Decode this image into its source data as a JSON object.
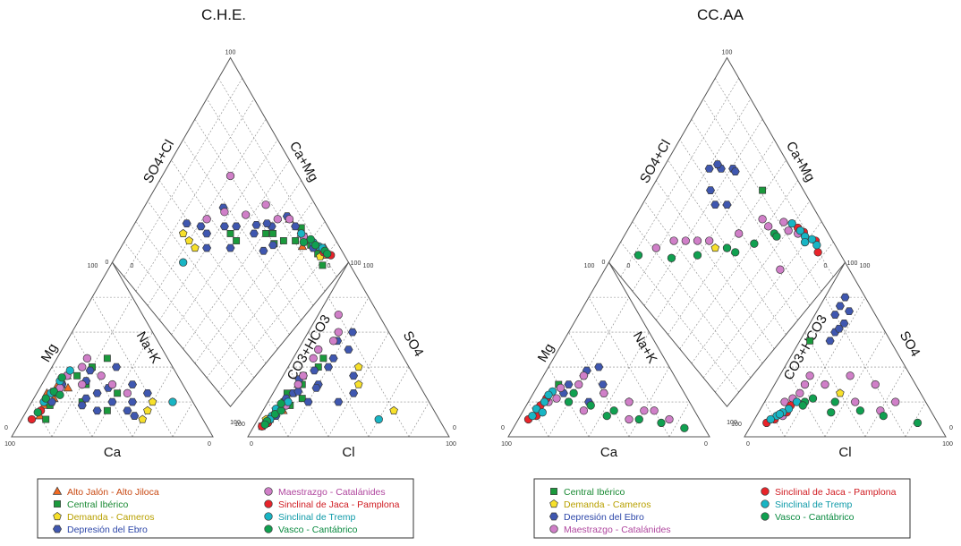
{
  "series_styles": [
    {
      "key": "alto_jalon",
      "name": "Alto Jalón - Alto Jiloca",
      "shape": "triangle",
      "color": "#f26a22",
      "text_color": "#c94a14"
    },
    {
      "key": "central_iberico",
      "name": "Central Ibérico",
      "shape": "square",
      "color": "#1a9a3c",
      "text_color": "#1a8a34"
    },
    {
      "key": "demanda",
      "name": "Demanda - Cameros",
      "shape": "pentagon",
      "color": "#f7e02a",
      "text_color": "#b8a000"
    },
    {
      "key": "depresion",
      "name": "Depresión del Ebro",
      "shape": "hexagon",
      "color": "#3f57b0",
      "text_color": "#2c46a8"
    },
    {
      "key": "maestrazgo",
      "name": "Maestrazgo - Catalánides",
      "shape": "circle",
      "color": "#d07fc8",
      "text_color": "#b0479f"
    },
    {
      "key": "jaca",
      "name": "Sinclinal de Jaca - Pamplona",
      "shape": "circle",
      "color": "#e8242a",
      "text_color": "#d01c22"
    },
    {
      "key": "tremp",
      "name": "Sinclinal de Tremp",
      "shape": "circle",
      "color": "#18b5c4",
      "text_color": "#0e9aa8"
    },
    {
      "key": "vasco",
      "name": "Vasco - Cantábrico",
      "shape": "circle",
      "color": "#10a050",
      "text_color": "#0a8a40"
    }
  ],
  "tick_labels": {
    "zero": "0",
    "hundred": "100"
  },
  "chart_data": [
    {
      "type": "scatter",
      "subtype": "piper-diagram",
      "title": "C.H.E.",
      "axis_labels": {
        "cation_left": "Mg",
        "cation_right": "Na+K",
        "cation_bottom": "Ca",
        "anion_left": "CO3+HCO3",
        "anion_right": "SO4",
        "anion_bottom": "Cl",
        "diamond_left": "SO4+Cl",
        "diamond_right": "Ca+Mg"
      },
      "legend": [
        "Alto Jalón - Alto Jiloca",
        "Central Ibérico",
        "Demanda - Cameros",
        "Depresión del Ebro",
        "Maestrazgo - Catalánides",
        "Sinclinal de Jaca - Pamplona",
        "Sinclinal de Tremp",
        "Vasco - Cantábrico"
      ],
      "series": [
        {
          "name": "Alto Jalón - Alto Jiloca",
          "points": [
            {
              "ca": 70,
              "mg": 25,
              "hco3": 85,
              "so4": 10
            },
            {
              "ca": 62,
              "mg": 30,
              "hco3": 80,
              "so4": 14
            },
            {
              "ca": 75,
              "mg": 18,
              "hco3": 88,
              "so4": 8
            },
            {
              "ca": 55,
              "mg": 35,
              "hco3": 70,
              "so4": 20
            },
            {
              "ca": 68,
              "mg": 22,
              "hco3": 60,
              "so4": 30
            },
            {
              "ca": 58,
              "mg": 28,
              "hco3": 75,
              "so4": 15
            },
            {
              "ca": 80,
              "mg": 12,
              "hco3": 82,
              "so4": 12
            }
          ]
        },
        {
          "name": "Central Ibérico",
          "points": [
            {
              "ca": 65,
              "mg": 25,
              "hco3": 78,
              "so4": 15
            },
            {
              "ca": 50,
              "mg": 35,
              "hco3": 70,
              "so4": 18
            },
            {
              "ca": 72,
              "mg": 18,
              "hco3": 84,
              "so4": 10
            },
            {
              "ca": 40,
              "mg": 40,
              "hco3": 65,
              "so4": 25
            },
            {
              "ca": 55,
              "mg": 20,
              "hco3": 55,
              "so4": 35
            },
            {
              "ca": 35,
              "mg": 25,
              "hco3": 45,
              "so4": 40
            },
            {
              "ca": 30,
              "mg": 45,
              "hco3": 62,
              "so4": 22
            },
            {
              "ca": 78,
              "mg": 10,
              "hco3": 90,
              "so4": 6
            },
            {
              "ca": 60,
              "mg": 30,
              "hco3": 72,
              "so4": 20
            },
            {
              "ca": 45,
              "mg": 15,
              "hco3": 40,
              "so4": 45
            },
            {
              "ca": 48,
              "mg": 30,
              "hco3": 58,
              "so4": 30
            },
            {
              "ca": 66,
              "mg": 26,
              "hco3": 68,
              "so4": 25
            }
          ]
        },
        {
          "name": "Demanda - Cameros",
          "points": [
            {
              "ca": 70,
              "mg": 20,
              "hco3": 86,
              "so4": 10
            },
            {
              "ca": 25,
              "mg": 15,
              "hco3": 30,
              "so4": 30
            },
            {
              "ca": 20,
              "mg": 20,
              "hco3": 25,
              "so4": 40
            },
            {
              "ca": 60,
              "mg": 30,
              "hco3": 74,
              "so4": 18
            },
            {
              "ca": 30,
              "mg": 10,
              "hco3": 20,
              "so4": 15
            }
          ]
        },
        {
          "name": "Depresión del Ebro",
          "points": [
            {
              "ca": 60,
              "mg": 30,
              "hco3": 70,
              "so4": 22
            },
            {
              "ca": 45,
              "mg": 25,
              "hco3": 50,
              "so4": 30
            },
            {
              "ca": 40,
              "mg": 20,
              "hco3": 35,
              "so4": 45
            },
            {
              "ca": 35,
              "mg": 15,
              "hco3": 25,
              "so4": 50
            },
            {
              "ca": 55,
              "mg": 35,
              "hco3": 65,
              "so4": 25
            },
            {
              "ca": 30,
              "mg": 20,
              "hco3": 30,
              "so4": 35
            },
            {
              "ca": 50,
              "mg": 15,
              "hco3": 40,
              "so4": 40
            },
            {
              "ca": 25,
              "mg": 30,
              "hco3": 45,
              "so4": 20
            },
            {
              "ca": 70,
              "mg": 20,
              "hco3": 80,
              "so4": 12
            },
            {
              "ca": 42,
              "mg": 38,
              "hco3": 55,
              "so4": 35
            },
            {
              "ca": 38,
              "mg": 28,
              "hco3": 28,
              "so4": 55
            },
            {
              "ca": 20,
              "mg": 25,
              "hco3": 35,
              "so4": 25
            },
            {
              "ca": 52,
              "mg": 22,
              "hco3": 48,
              "so4": 38
            },
            {
              "ca": 33,
              "mg": 12,
              "hco3": 18,
              "so4": 60
            },
            {
              "ca": 63,
              "mg": 27,
              "hco3": 58,
              "so4": 33
            },
            {
              "ca": 47,
              "mg": 32,
              "hco3": 52,
              "so4": 28
            },
            {
              "ca": 28,
              "mg": 40,
              "hco3": 60,
              "so4": 20
            },
            {
              "ca": 56,
              "mg": 18,
              "hco3": 62,
              "so4": 26
            }
          ]
        },
        {
          "name": "Maestrazgo - Catalánides",
          "points": [
            {
              "ca": 55,
              "mg": 35,
              "hco3": 60,
              "so4": 30
            },
            {
              "ca": 40,
              "mg": 45,
              "hco3": 55,
              "so4": 35
            },
            {
              "ca": 35,
              "mg": 30,
              "hco3": 30,
              "so4": 55
            },
            {
              "ca": 30,
              "mg": 25,
              "hco3": 25,
              "so4": 60
            },
            {
              "ca": 62,
              "mg": 28,
              "hco3": 72,
              "so4": 18
            },
            {
              "ca": 45,
              "mg": 40,
              "hco3": 45,
              "so4": 45
            },
            {
              "ca": 50,
              "mg": 30,
              "hco3": 20,
              "so4": 70
            },
            {
              "ca": 38,
              "mg": 35,
              "hco3": 40,
              "so4": 50
            }
          ]
        },
        {
          "name": "Sinclinal de Jaca - Pamplona",
          "points": [
            {
              "ca": 85,
              "mg": 10,
              "hco3": 90,
              "so4": 6
            },
            {
              "ca": 78,
              "mg": 15,
              "hco3": 86,
              "so4": 8
            }
          ]
        },
        {
          "name": "Sinclinal de Tremp",
          "points": [
            {
              "ca": 68,
              "mg": 25,
              "hco3": 82,
              "so4": 12
            },
            {
              "ca": 60,
              "mg": 32,
              "hco3": 78,
              "so4": 16
            },
            {
              "ca": 52,
              "mg": 38,
              "hco3": 70,
              "so4": 20
            },
            {
              "ca": 74,
              "mg": 20,
              "hco3": 84,
              "so4": 10
            },
            {
              "ca": 10,
              "mg": 20,
              "hco3": 30,
              "so4": 10
            }
          ]
        },
        {
          "name": "Vasco - Cantábrico",
          "points": [
            {
              "ca": 72,
              "mg": 22,
              "hco3": 86,
              "so4": 9
            },
            {
              "ca": 66,
              "mg": 26,
              "hco3": 80,
              "so4": 13
            },
            {
              "ca": 58,
              "mg": 34,
              "hco3": 76,
              "so4": 15
            },
            {
              "ca": 80,
              "mg": 14,
              "hco3": 88,
              "so4": 7
            },
            {
              "ca": 64,
              "mg": 24,
              "hco3": 74,
              "so4": 19
            }
          ]
        }
      ]
    },
    {
      "type": "scatter",
      "subtype": "piper-diagram",
      "title": "CC.AA",
      "axis_labels": {
        "cation_left": "Mg",
        "cation_right": "Na+K",
        "cation_bottom": "Ca",
        "anion_left": "CO3+HCO3",
        "anion_right": "SO4",
        "anion_bottom": "Cl",
        "diamond_left": "SO4+Cl",
        "diamond_right": "Ca+Mg"
      },
      "legend": [
        "Central Ibérico",
        "Demanda - Cameros",
        "Depresión del Ebro",
        "Maestrazgo - Catalánides",
        "Sinclinal de Jaca - Pamplona",
        "Sinclinal de Tremp",
        "Vasco - Cantábrico"
      ],
      "series": [
        {
          "name": "Central Ibérico",
          "points": [
            {
              "ca": 60,
              "mg": 30,
              "hco3": 40,
              "so4": 55
            }
          ]
        },
        {
          "name": "Demanda - Cameros",
          "points": [
            {
              "ca": 30,
              "mg": 20,
              "hco3": 40,
              "so4": 25
            }
          ]
        },
        {
          "name": "Depresión del Ebro",
          "points": [
            {
              "ca": 55,
              "mg": 30,
              "hco3": 20,
              "so4": 70
            },
            {
              "ca": 45,
              "mg": 35,
              "hco3": 15,
              "so4": 75
            },
            {
              "ca": 40,
              "mg": 25,
              "hco3": 25,
              "so4": 60
            },
            {
              "ca": 35,
              "mg": 40,
              "hco3": 10,
              "so4": 80
            },
            {
              "ca": 50,
              "mg": 20,
              "hco3": 30,
              "so4": 55
            },
            {
              "ca": 38,
              "mg": 30,
              "hco3": 18,
              "so4": 65
            },
            {
              "ca": 60,
              "mg": 25,
              "hco3": 22,
              "so4": 62
            },
            {
              "ca": 42,
              "mg": 38,
              "hco3": 12,
              "so4": 72
            }
          ]
        },
        {
          "name": "Maestrazgo - Catalánides",
          "points": [
            {
              "ca": 70,
              "mg": 20,
              "hco3": 70,
              "so4": 20
            },
            {
              "ca": 60,
              "mg": 28,
              "hco3": 60,
              "so4": 25
            },
            {
              "ca": 50,
              "mg": 30,
              "hco3": 55,
              "so4": 30
            },
            {
              "ca": 40,
              "mg": 25,
              "hco3": 45,
              "so4": 30
            },
            {
              "ca": 30,
              "mg": 20,
              "hco3": 35,
              "so4": 20
            },
            {
              "ca": 25,
              "mg": 15,
              "hco3": 25,
              "so4": 15
            },
            {
              "ca": 65,
              "mg": 22,
              "hco3": 65,
              "so4": 22
            },
            {
              "ca": 45,
              "mg": 35,
              "hco3": 50,
              "so4": 35
            },
            {
              "ca": 35,
              "mg": 10,
              "hco3": 30,
              "so4": 35
            },
            {
              "ca": 20,
              "mg": 15,
              "hco3": 20,
              "so4": 30
            },
            {
              "ca": 55,
              "mg": 15,
              "hco3": 75,
              "so4": 12
            },
            {
              "ca": 15,
              "mg": 10,
              "hco3": 15,
              "so4": 20
            }
          ]
        },
        {
          "name": "Sinclinal de Jaca - Pamplona",
          "points": [
            {
              "ca": 85,
              "mg": 10,
              "hco3": 80,
              "so4": 10
            },
            {
              "ca": 75,
              "mg": 18,
              "hco3": 72,
              "so4": 14
            },
            {
              "ca": 80,
              "mg": 12,
              "hco3": 85,
              "so4": 8
            },
            {
              "ca": 70,
              "mg": 22,
              "hco3": 68,
              "so4": 18
            }
          ]
        },
        {
          "name": "Sinclinal de Tremp",
          "points": [
            {
              "ca": 82,
              "mg": 12,
              "hco3": 78,
              "so4": 12
            },
            {
              "ca": 72,
              "mg": 20,
              "hco3": 70,
              "so4": 16
            },
            {
              "ca": 65,
              "mg": 26,
              "hco3": 64,
              "so4": 20
            },
            {
              "ca": 78,
              "mg": 16,
              "hco3": 82,
              "so4": 10
            },
            {
              "ca": 68,
              "mg": 24,
              "hco3": 74,
              "so4": 14
            },
            {
              "ca": 76,
              "mg": 14,
              "hco3": 76,
              "so4": 13
            }
          ]
        },
        {
          "name": "Vasco - Cantábrico",
          "points": [
            {
              "ca": 60,
              "mg": 20,
              "hco3": 60,
              "so4": 20
            },
            {
              "ca": 50,
              "mg": 18,
              "hco3": 55,
              "so4": 22
            },
            {
              "ca": 40,
              "mg": 15,
              "hco3": 45,
              "so4": 20
            },
            {
              "ca": 30,
              "mg": 10,
              "hco3": 35,
              "so4": 15
            },
            {
              "ca": 20,
              "mg": 8,
              "hco3": 25,
              "so4": 12
            },
            {
              "ca": 55,
              "mg": 25,
              "hco3": 62,
              "so4": 18
            },
            {
              "ca": 45,
              "mg": 12,
              "hco3": 50,
              "so4": 14
            },
            {
              "ca": 10,
              "mg": 5,
              "hco3": 10,
              "so4": 8
            }
          ]
        }
      ]
    }
  ]
}
